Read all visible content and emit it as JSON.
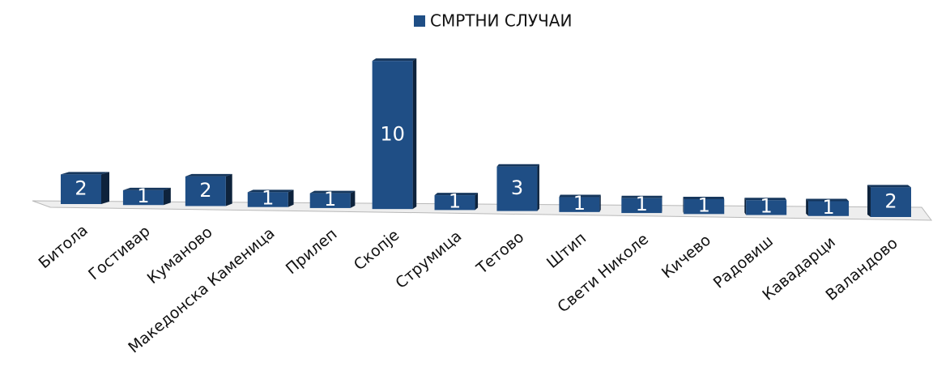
{
  "chart_data": {
    "type": "bar3d",
    "categories": [
      "Битола",
      "Гостивар",
      "Куманово",
      "Македонска Каменица",
      "Прилеп",
      "Скопје",
      "Струмица",
      "Тетово",
      "Штип",
      "Свети Николе",
      "Кичево",
      "Радовиш",
      "Кавадарци",
      "Валандово"
    ],
    "series": [
      {
        "name": "СМРТНИ СЛУЧАИ",
        "color": "#1f4e85",
        "values": [
          2,
          1,
          2,
          1,
          1,
          10,
          1,
          3,
          1,
          1,
          1,
          1,
          1,
          2
        ]
      }
    ],
    "legend": "top"
  }
}
